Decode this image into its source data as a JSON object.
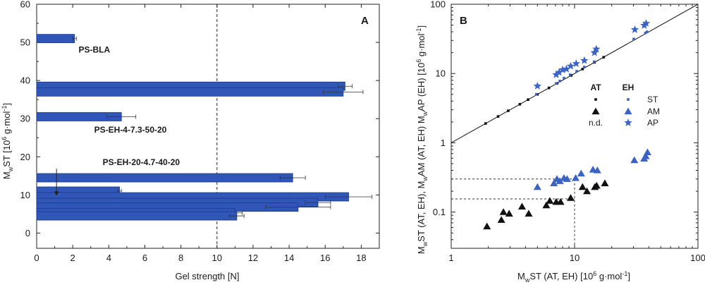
{
  "colors": {
    "bar_fill": "#3056b8",
    "bar_stroke": "#1d3a8a",
    "eh_marker": "#3a63c4",
    "at_marker": "#111111",
    "axis": "#222222"
  },
  "chart_data": [
    {
      "type": "bar",
      "orientation": "horizontal",
      "panel_label": "A",
      "xlabel": "Gel strength [N]",
      "ylabel": "M<sub>w</sub>ST [10<sup>6</sup> g·mol<sup>-1</sup>]",
      "xlim": [
        0,
        19
      ],
      "ylim": [
        -4,
        60
      ],
      "xticks": [
        0,
        2,
        4,
        6,
        8,
        10,
        12,
        14,
        16,
        18
      ],
      "yticks": [
        0,
        10,
        20,
        30,
        40,
        50,
        60
      ],
      "reference_line": {
        "x": 10,
        "style": "dashed"
      },
      "bars": [
        {
          "y": 51,
          "value": 2.1,
          "error": 0.1
        },
        {
          "y": 38.5,
          "value": 17.1,
          "error": 0.4
        },
        {
          "y": 37,
          "value": 17.0,
          "error": 1.1
        },
        {
          "y": 30.5,
          "value": 4.7,
          "error": 0.8
        },
        {
          "y": 14.5,
          "value": 14.2,
          "error": 0.7
        },
        {
          "y": 11,
          "value": 4.6,
          "error": 0.1
        },
        {
          "y": 9.5,
          "value": 17.3,
          "error": 1.3
        },
        {
          "y": 8,
          "value": 15.6,
          "error": 0.7
        },
        {
          "y": 6.8,
          "value": 14.5,
          "error": 1.8
        },
        {
          "y": 5.3,
          "value": 11.0,
          "error": 0.4
        },
        {
          "y": 4.5,
          "value": 11.1,
          "error": 0.4
        }
      ],
      "annotations": [
        {
          "text": "PS-BLA",
          "x": 3.2,
          "y": 47.3
        },
        {
          "text": "PS-EH-4-7.3-50-20",
          "x": 5.2,
          "y": 26.3
        },
        {
          "text": "PS-EH-20-4.7-40-20",
          "x": 5.8,
          "y": 17.8,
          "arrow_to": {
            "x": 1.1,
            "y": 9.8
          }
        }
      ]
    },
    {
      "type": "scatter",
      "panel_label": "B",
      "xlabel": "M<sub>w</sub>ST (AT, EH) [10<sup>6</sup> g·mol<sup>-1</sup>]",
      "ylabel": "M<sub>w</sub>ST (AT, EH), M<sub>w</sub>AM (AT, EH) M<sub>w</sub>AP (EH) [10<sup>6</sup> g·mol<sup>-1</sup>]",
      "xscale": "log",
      "yscale": "log",
      "xlim": [
        1,
        100
      ],
      "ylim": [
        0.03,
        100
      ],
      "xticks": [
        1,
        10,
        100
      ],
      "yticks": [
        0.1,
        1,
        10,
        100
      ],
      "reference_line": {
        "type": "y=x"
      },
      "guides": [
        {
          "y": 0.3,
          "x_to": 10
        },
        {
          "y": 0.155,
          "x_to": 10
        }
      ],
      "legend": {
        "headers": [
          "AT",
          "EH"
        ],
        "rows": [
          {
            "label": "ST",
            "at_marker": "small-square",
            "eh_marker": "small-square"
          },
          {
            "label": "AM",
            "at_marker": "triangle",
            "eh_marker": "triangle"
          },
          {
            "label": "AP",
            "at_text": "n.d.",
            "eh_marker": "star"
          }
        ]
      },
      "series": [
        {
          "group": "AT",
          "kind": "ST",
          "marker": "small-square",
          "points": [
            [
              1.9,
              1.9
            ],
            [
              2.4,
              2.4
            ],
            [
              2.9,
              2.9
            ],
            [
              3.6,
              3.6
            ],
            [
              4.2,
              4.2
            ],
            [
              5.0,
              5.0
            ],
            [
              6.2,
              6.2
            ],
            [
              7.2,
              7.2
            ],
            [
              9.4,
              9.4
            ],
            [
              11.6,
              11.6
            ],
            [
              14.5,
              14.5
            ],
            [
              17.2,
              17.2
            ]
          ]
        },
        {
          "group": "EH",
          "kind": "ST",
          "marker": "small-square",
          "points": [
            [
              4.9,
              5.0
            ],
            [
              7.1,
              7.2
            ],
            [
              7.6,
              7.8
            ],
            [
              8.2,
              8.6
            ],
            [
              9.2,
              9.6
            ],
            [
              10.4,
              10.8
            ],
            [
              12.0,
              12.4
            ],
            [
              14.4,
              14.8
            ],
            [
              30.2,
              31.5
            ],
            [
              37.5,
              38.5
            ],
            [
              38.6,
              40.0
            ]
          ]
        },
        {
          "group": "AT",
          "kind": "AM",
          "marker": "triangle",
          "points": [
            [
              1.95,
              0.062
            ],
            [
              2.55,
              0.077
            ],
            [
              2.65,
              0.1
            ],
            [
              2.95,
              0.095
            ],
            [
              3.75,
              0.12
            ],
            [
              4.25,
              0.095
            ],
            [
              5.9,
              0.125
            ],
            [
              6.3,
              0.145
            ],
            [
              7.1,
              0.14
            ],
            [
              7.7,
              0.14
            ],
            [
              9.3,
              0.16
            ],
            [
              11.6,
              0.23
            ],
            [
              12.6,
              0.2
            ],
            [
              14.6,
              0.23
            ],
            [
              15.1,
              0.24
            ],
            [
              17.6,
              0.26
            ]
          ]
        },
        {
          "group": "EH",
          "kind": "AM",
          "marker": "triangle",
          "points": [
            [
              5.0,
              0.23
            ],
            [
              6.8,
              0.26
            ],
            [
              7.2,
              0.3
            ],
            [
              7.6,
              0.28
            ],
            [
              8.2,
              0.31
            ],
            [
              8.7,
              0.3
            ],
            [
              10.2,
              0.31
            ],
            [
              11.3,
              0.36
            ],
            [
              14.1,
              0.41
            ],
            [
              15.3,
              0.4
            ],
            [
              30.5,
              0.56
            ],
            [
              36.6,
              0.59
            ],
            [
              37.8,
              0.64
            ],
            [
              39.0,
              0.73
            ]
          ]
        },
        {
          "group": "EH",
          "kind": "AP",
          "marker": "star",
          "points": [
            [
              5.0,
              6.6
            ],
            [
              7.1,
              9.6
            ],
            [
              7.5,
              10.4
            ],
            [
              8.0,
              11.3
            ],
            [
              8.6,
              11.6
            ],
            [
              9.3,
              12.8
            ],
            [
              10.3,
              13.9
            ],
            [
              12.0,
              15.4
            ],
            [
              14.5,
              20.0
            ],
            [
              15.0,
              22.5
            ],
            [
              30.8,
              43.0
            ],
            [
              36.7,
              49.5
            ],
            [
              38.0,
              53.0
            ]
          ]
        }
      ]
    }
  ]
}
